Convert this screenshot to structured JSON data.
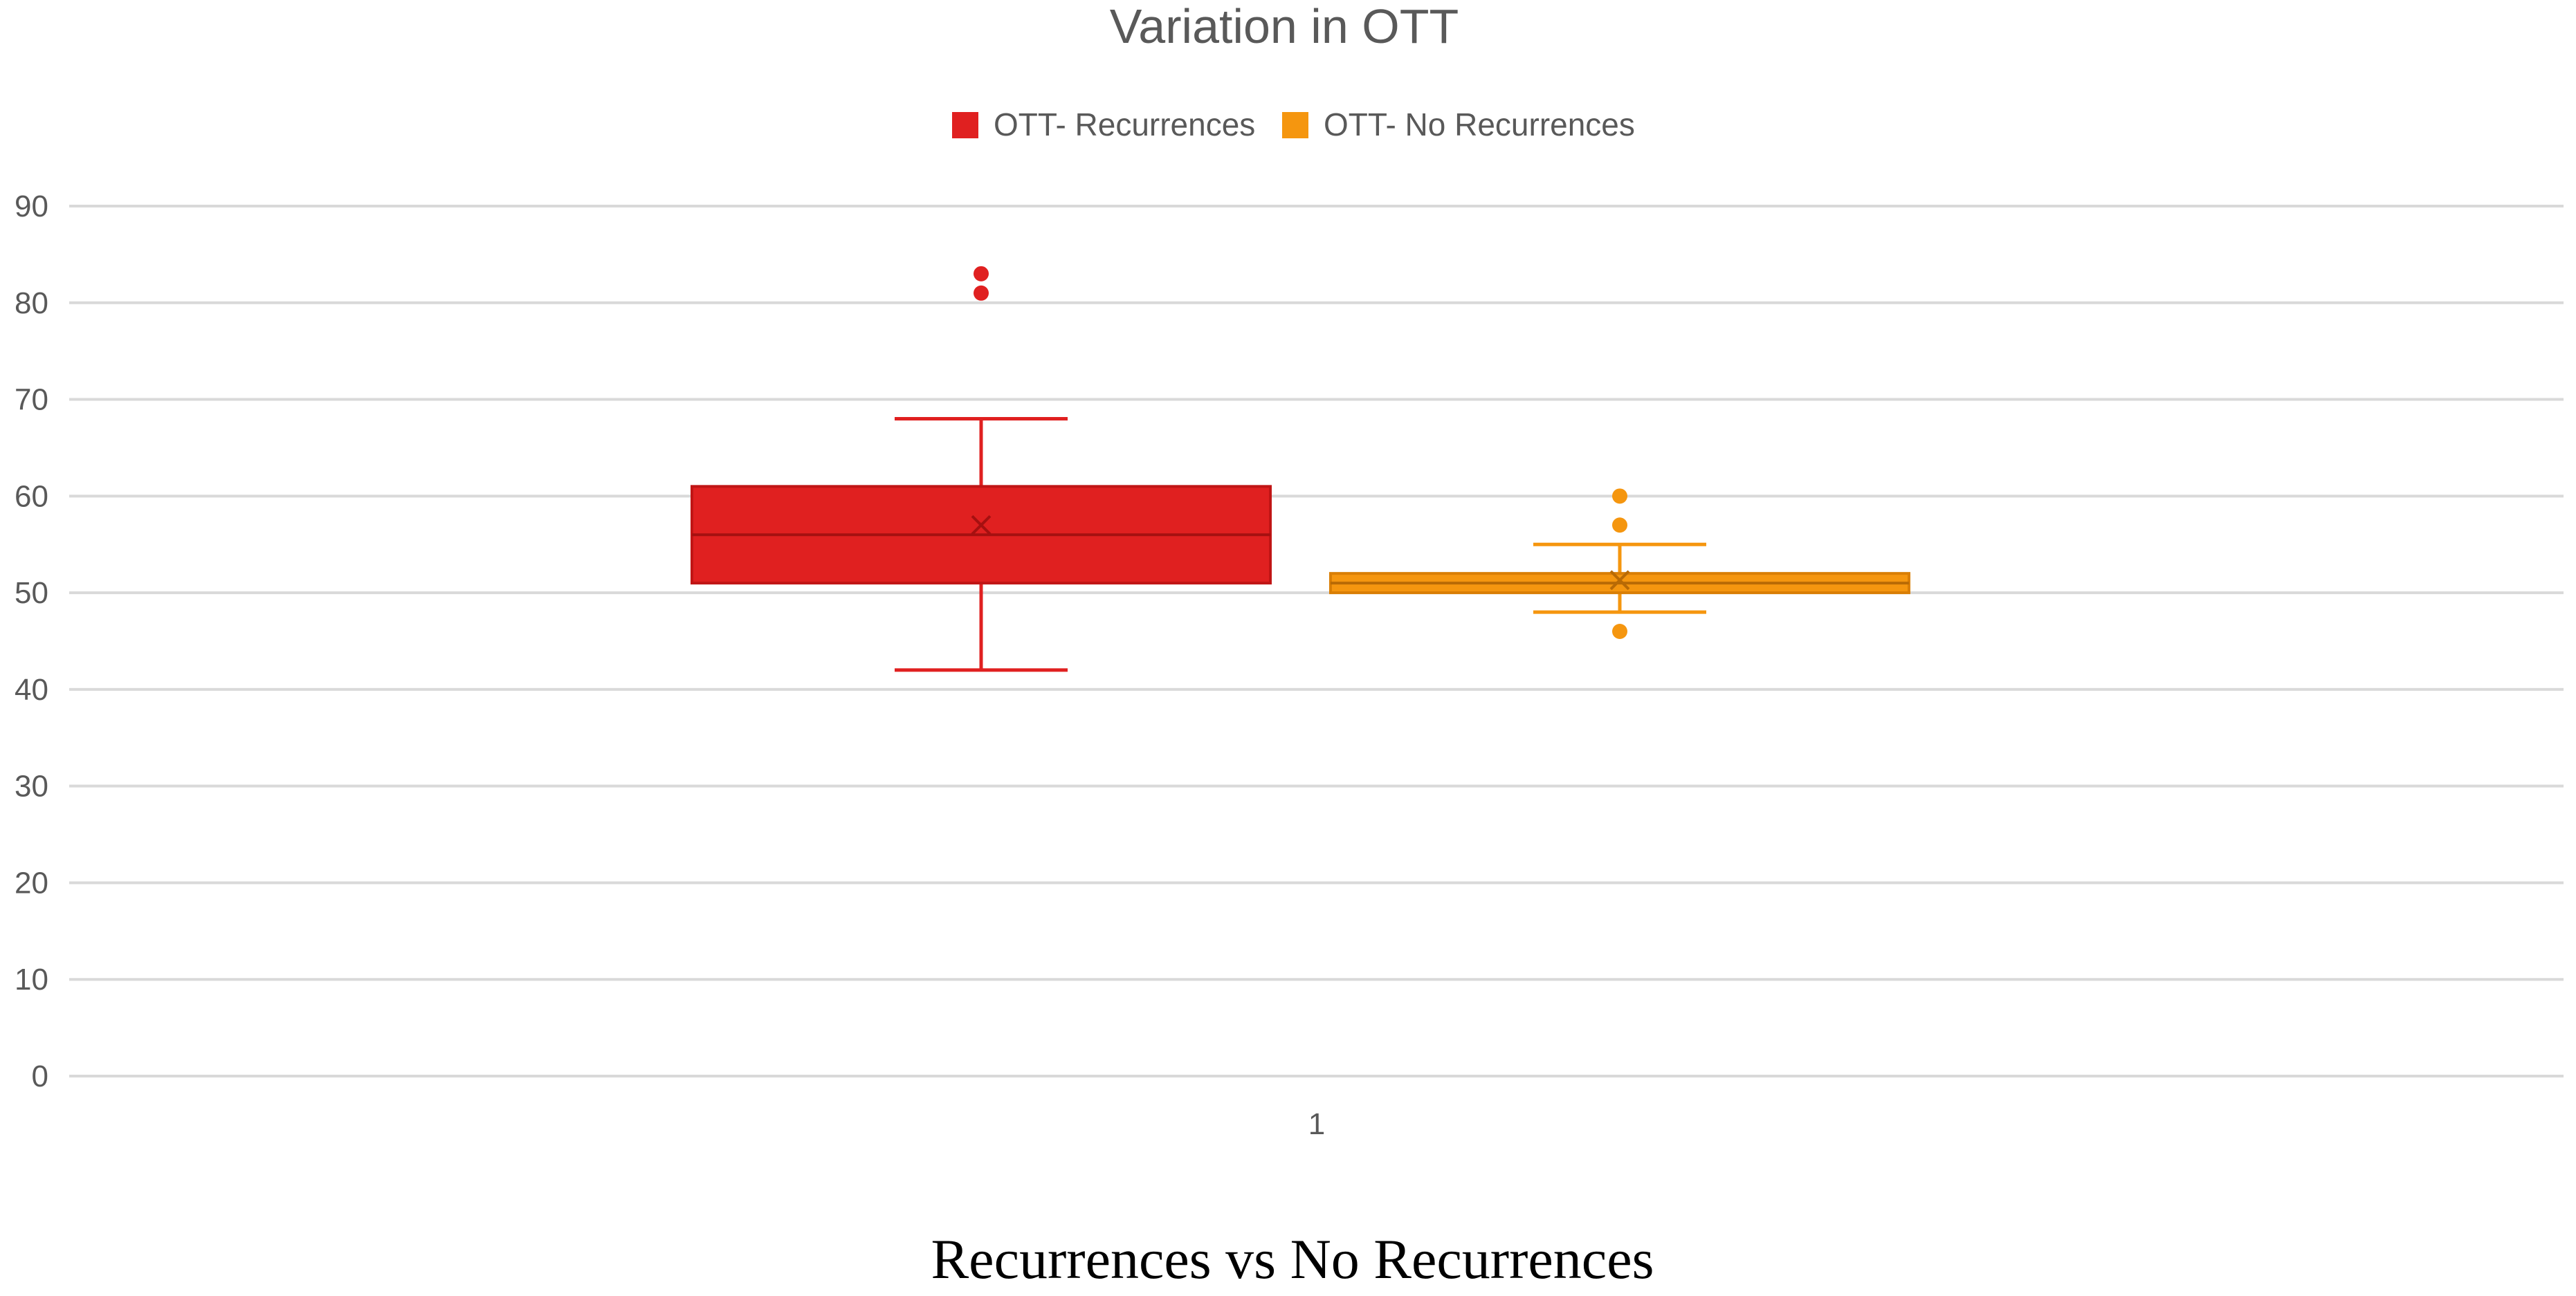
{
  "chart_data": {
    "type": "box",
    "title": "Variation in OTT",
    "caption": "Recurrences vs No Recurrences",
    "categories": [
      "1"
    ],
    "ylim": [
      0,
      90
    ],
    "y_ticks": [
      0,
      10,
      20,
      30,
      40,
      50,
      60,
      70,
      80,
      90
    ],
    "grid": true,
    "legend_placement": "top-center",
    "series": [
      {
        "name": "OTT- Recurrences",
        "color": "#e02020",
        "stats": {
          "min": 42,
          "q1": 51,
          "median": 56,
          "q3": 61,
          "max": 68,
          "mean": 57
        },
        "outliers": [
          81,
          83
        ]
      },
      {
        "name": "OTT- No Recurrences",
        "color": "#f5960f",
        "stats": {
          "min": 48,
          "q1": 50,
          "median": 51,
          "q3": 52,
          "max": 55,
          "mean": 51.3
        },
        "outliers": [
          46,
          57,
          60
        ]
      }
    ]
  }
}
